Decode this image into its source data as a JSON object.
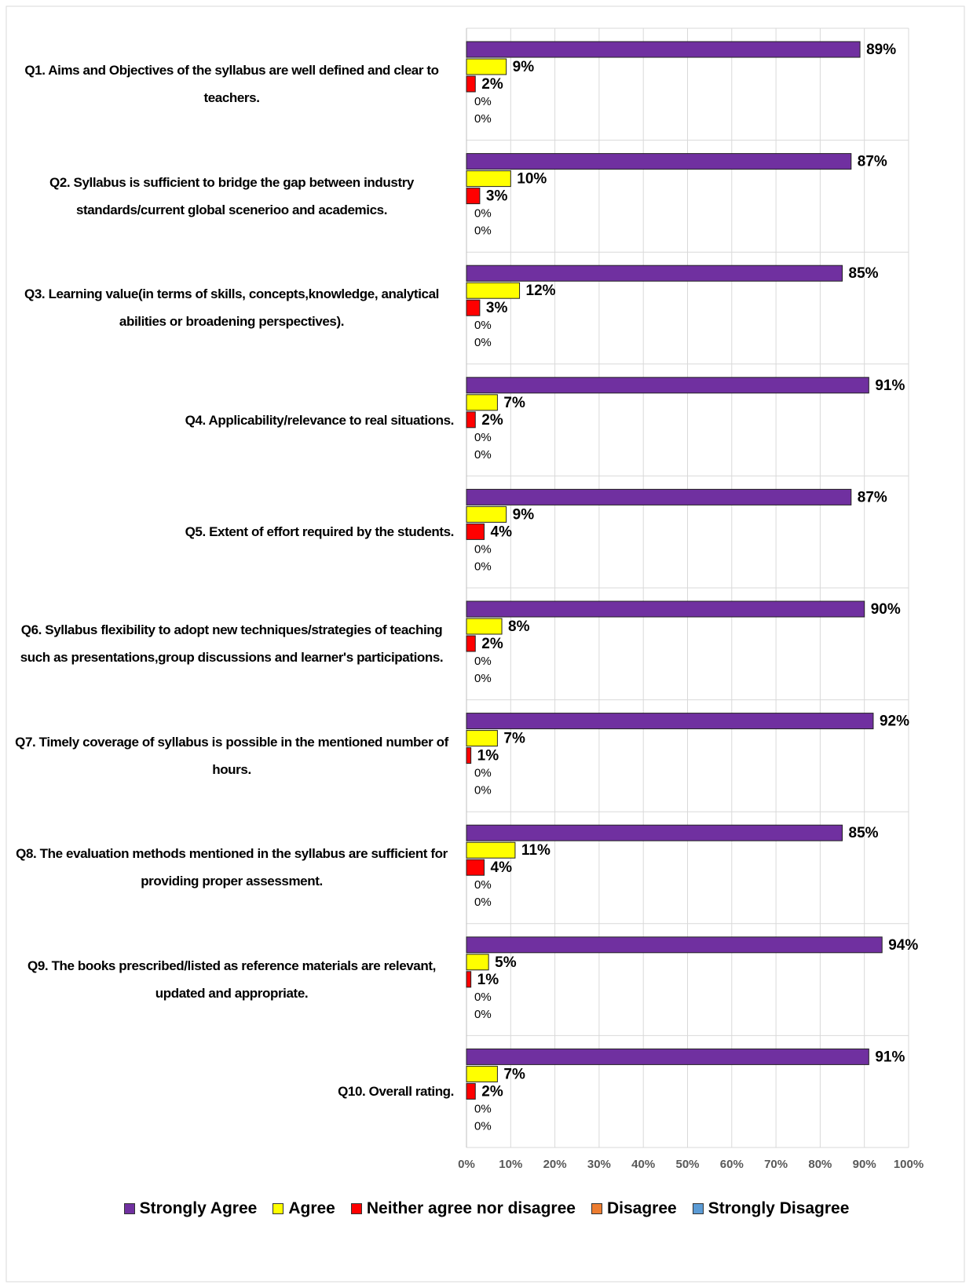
{
  "chart_data": {
    "type": "bar",
    "orientation": "horizontal",
    "categories": [
      "Q1. Aims and Objectives of the syllabus are well defined and clear to teachers.",
      "Q2. Syllabus is sufficient to bridge the gap between industry standards/current global scenerioo and academics.",
      "Q3. Learning value(in terms of skills, concepts,knowledge, analytical abilities or broadening perspectives).",
      "Q4. Applicability/relevance to real situations.",
      "Q5. Extent of effort required by the students.",
      "Q6. Syllabus flexibility to adopt new techniques/strategies of teaching such as presentations,group discussions and learner's participations.",
      "Q7. Timely coverage of syllabus is possible in the mentioned number of hours.",
      "Q8. The evaluation methods mentioned in the syllabus are sufficient for providing proper assessment.",
      "Q9. The books prescribed/listed as reference materials are relevant, updated and appropriate.",
      "Q10. Overall rating."
    ],
    "series": [
      {
        "name": "Strongly Agree",
        "color": "#7030a0",
        "values": [
          89,
          87,
          85,
          91,
          87,
          90,
          92,
          85,
          94,
          91
        ],
        "value_labels": [
          "89%",
          "87%",
          "85%",
          "91%",
          "87%",
          "90%",
          "92%",
          "85%",
          "94%",
          "91%"
        ]
      },
      {
        "name": "Agree",
        "color": "#ffff00",
        "values": [
          9,
          10,
          12,
          7,
          9,
          8,
          7,
          11,
          5,
          7
        ],
        "value_labels": [
          "9%",
          "10%",
          "12%",
          "7%",
          "9%",
          "8%",
          "7%",
          "11%",
          "5%",
          "7%"
        ]
      },
      {
        "name": "Neither agree nor disagree",
        "color": "#ff0000",
        "values": [
          2,
          3,
          3,
          2,
          4,
          2,
          1,
          4,
          1,
          2
        ],
        "value_labels": [
          "2%",
          "3%",
          "3%",
          "2%",
          "4%",
          "2%",
          "1%",
          "4%",
          "1%",
          "2%"
        ]
      },
      {
        "name": "Disagree",
        "color": "#ed7d31",
        "values": [
          0,
          0,
          0,
          0,
          0,
          0,
          0,
          0,
          0,
          0
        ],
        "value_labels": [
          "0%",
          "0%",
          "0%",
          "0%",
          "0%",
          "0%",
          "0%",
          "0%",
          "0%",
          "0%"
        ]
      },
      {
        "name": "Strongly Disagree",
        "color": "#5b9bd5",
        "values": [
          0,
          0,
          0,
          0,
          0,
          0,
          0,
          0,
          0,
          0
        ],
        "value_labels": [
          "0%",
          "0%",
          "0%",
          "0%",
          "0%",
          "0%",
          "0%",
          "0%",
          "0%",
          "0%"
        ]
      }
    ],
    "xlim": [
      0,
      100
    ],
    "xticks": [
      {
        "value": 0,
        "label": "0%"
      },
      {
        "value": 10,
        "label": "10%"
      },
      {
        "value": 20,
        "label": "20%"
      },
      {
        "value": 30,
        "label": "30%"
      },
      {
        "value": 40,
        "label": "40%"
      },
      {
        "value": 50,
        "label": "50%"
      },
      {
        "value": 60,
        "label": "60%"
      },
      {
        "value": 70,
        "label": "70%"
      },
      {
        "value": 80,
        "label": "80%"
      },
      {
        "value": 90,
        "label": "90%"
      },
      {
        "value": 100,
        "label": "100%"
      }
    ],
    "grid": true,
    "legend": "bottom"
  }
}
